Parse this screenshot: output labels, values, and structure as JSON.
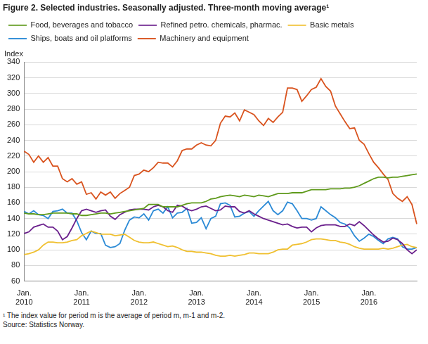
{
  "chart_data": {
    "type": "line",
    "title": "Figure 2. Selected industries. Seasonally adjusted. Three-month moving average¹",
    "y_label": "Index",
    "notes": [
      "¹ The index value for period m is the average of period m, m-1 and m-2.",
      "Source: Statistics Norway."
    ],
    "categories": [
      "Jan. 2010",
      null,
      null,
      null,
      null,
      null,
      null,
      null,
      null,
      null,
      null,
      null,
      "Jan. 2011",
      null,
      null,
      null,
      null,
      null,
      null,
      null,
      null,
      null,
      null,
      null,
      "Jan. 2012",
      null,
      null,
      null,
      null,
      null,
      null,
      null,
      null,
      null,
      null,
      null,
      "Jan. 2013",
      null,
      null,
      null,
      null,
      null,
      null,
      null,
      null,
      null,
      null,
      null,
      "Jan. 2014",
      null,
      null,
      null,
      null,
      null,
      null,
      null,
      null,
      null,
      null,
      null,
      "Jan. 2015",
      null,
      null,
      null,
      null,
      null,
      null,
      null,
      null,
      null,
      null,
      null,
      "Jan. 2016",
      null,
      null,
      null,
      null,
      null,
      null,
      null,
      null,
      null,
      null
    ],
    "series": [
      {
        "name": "Food, beverages and tobacco",
        "color": "#5f9a1c",
        "values": [
          147,
          146,
          146,
          145,
          145,
          146,
          147,
          147,
          147,
          147,
          146,
          146,
          144,
          144,
          145,
          146,
          147,
          147,
          146,
          147,
          148,
          149,
          150,
          151,
          152,
          153,
          158,
          158,
          158,
          155,
          155,
          155,
          155,
          157,
          159,
          160,
          160,
          160,
          162,
          165,
          166,
          168,
          169,
          170,
          169,
          168,
          170,
          169,
          168,
          170,
          169,
          168,
          170,
          172,
          172,
          172,
          173,
          173,
          173,
          175,
          177,
          177,
          177,
          177,
          178,
          178,
          178,
          179,
          179,
          180,
          182,
          185,
          188,
          191,
          193,
          193,
          192,
          193,
          193,
          194,
          195,
          196,
          197
        ]
      },
      {
        "name": "Refined petro. chemicals, pharmac.",
        "color": "#6a1f8c",
        "values": [
          121,
          123,
          129,
          131,
          133,
          129,
          129,
          124,
          113,
          117,
          128,
          140,
          150,
          152,
          150,
          148,
          150,
          151,
          143,
          139,
          145,
          148,
          151,
          152,
          152,
          152,
          151,
          155,
          157,
          155,
          150,
          148,
          157,
          156,
          152,
          150,
          152,
          155,
          156,
          153,
          150,
          151,
          156,
          155,
          155,
          149,
          147,
          150,
          146,
          143,
          140,
          138,
          136,
          134,
          132,
          133,
          130,
          128,
          129,
          129,
          123,
          128,
          131,
          132,
          132,
          132,
          130,
          130,
          133,
          131,
          136,
          131,
          125,
          119,
          114,
          110,
          111,
          115,
          113,
          108,
          100,
          95,
          100
        ]
      },
      {
        "name": "Basic metals",
        "color": "#f0c030",
        "values": [
          94,
          95,
          97,
          100,
          106,
          110,
          110,
          109,
          109,
          110,
          112,
          113,
          118,
          121,
          124,
          122,
          120,
          120,
          120,
          118,
          119,
          120,
          116,
          112,
          110,
          109,
          109,
          110,
          108,
          106,
          104,
          105,
          103,
          100,
          98,
          98,
          97,
          97,
          96,
          95,
          93,
          92,
          92,
          93,
          92,
          93,
          94,
          96,
          96,
          95,
          95,
          95,
          97,
          100,
          101,
          101,
          106,
          107,
          108,
          110,
          113,
          114,
          114,
          113,
          112,
          112,
          110,
          109,
          107,
          104,
          102,
          101,
          101,
          101,
          101,
          102,
          101,
          102,
          104,
          106,
          107,
          104,
          103
        ]
      },
      {
        "name": "Ships, boats and oil platforms",
        "color": "#2b8ad6",
        "values": [
          149,
          146,
          150,
          145,
          144,
          140,
          149,
          150,
          152,
          147,
          147,
          137,
          122,
          113,
          124,
          121,
          121,
          106,
          103,
          104,
          108,
          125,
          138,
          142,
          141,
          146,
          138,
          150,
          152,
          147,
          155,
          141,
          147,
          148,
          153,
          134,
          135,
          141,
          127,
          140,
          143,
          159,
          160,
          157,
          142,
          143,
          147,
          149,
          143,
          150,
          156,
          162,
          150,
          145,
          150,
          161,
          159,
          150,
          140,
          140,
          138,
          140,
          155,
          150,
          145,
          141,
          135,
          133,
          128,
          118,
          111,
          115,
          120,
          117,
          112,
          108,
          114,
          116,
          114,
          104,
          101,
          101,
          103
        ]
      },
      {
        "name": "Machinery and equipment",
        "color": "#d9531e",
        "values": [
          226,
          222,
          212,
          220,
          212,
          218,
          207,
          207,
          191,
          187,
          191,
          184,
          187,
          171,
          173,
          165,
          174,
          170,
          174,
          166,
          172,
          176,
          180,
          195,
          197,
          202,
          200,
          205,
          212,
          211,
          211,
          206,
          214,
          227,
          229,
          229,
          234,
          237,
          234,
          233,
          240,
          262,
          271,
          270,
          275,
          265,
          279,
          276,
          273,
          265,
          259,
          268,
          263,
          270,
          276,
          307,
          307,
          305,
          290,
          297,
          305,
          308,
          319,
          309,
          303,
          284,
          274,
          264,
          255,
          256,
          240,
          235,
          223,
          212,
          205,
          197,
          190,
          172,
          166,
          162,
          168,
          158,
          133
        ]
      }
    ],
    "ylim": [
      60,
      340
    ],
    "yticks": [
      60,
      80,
      100,
      120,
      140,
      160,
      180,
      200,
      220,
      240,
      260,
      280,
      300,
      320,
      340
    ],
    "grid": true,
    "legend": "top"
  }
}
